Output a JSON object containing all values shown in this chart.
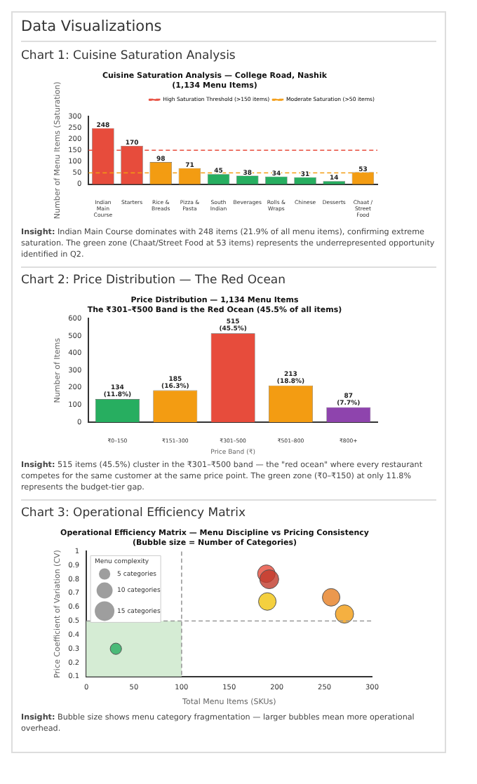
{
  "chart_data": [
    {
      "type": "bar",
      "title": "Cuisine Saturation Analysis — College Road, Nashik",
      "subtitle": "(1,134 Menu Items)",
      "ylabel": "Number of Menu Items (Saturation)",
      "categories": [
        "Indian Main Course",
        "Starters",
        "Rice & Breads",
        "Pizza & Pasta",
        "South Indian",
        "Beverages",
        "Rolls & Wraps",
        "Chinese",
        "Desserts",
        "Chaat / Street Food"
      ],
      "values": [
        248,
        170,
        98,
        71,
        45,
        38,
        34,
        31,
        14,
        53
      ],
      "colors": [
        "#e74c3c",
        "#e74c3c",
        "#f39c12",
        "#f39c12",
        "#27ae60",
        "#27ae60",
        "#27ae60",
        "#27ae60",
        "#27ae60",
        "#f39c12"
      ],
      "ylim": [
        0,
        300
      ],
      "yticks": [
        0,
        50,
        100,
        150,
        200,
        250,
        300
      ],
      "data_labels": true,
      "legend": "top right",
      "ref_lines": [
        {
          "axis": "y",
          "value": 150,
          "label": "High Saturation Threshold (>150 items)",
          "color": "#e74c3c",
          "line_style": "dashed"
        },
        {
          "axis": "y",
          "value": 50,
          "label": "Moderate Saturation (>50 items)",
          "color": "#f39c12",
          "line_style": "dashed"
        }
      ],
      "annotations": [
        "Data Visualizations",
        "Chart 1: Cuisine Saturation Analysis",
        "Insight: Indian Main Course dominates with 248 items (21.9% of all menu items), confirming extreme saturation. The green zone (Chaat/Street Food at 53 items) represents the underrepresented opportunity identified in Q2."
      ]
    },
    {
      "type": "bar",
      "title": "Price Distribution — 1,134 Menu Items",
      "subtitle": "The ₹301–₹500 Band is the Red Ocean (45.5% of all items)",
      "xlabel": "Price Band (₹)",
      "ylabel": "Number of Items",
      "categories": [
        "₹0–150",
        "₹151–300",
        "₹301–500",
        "₹501–800",
        "₹800+"
      ],
      "values": [
        134,
        185,
        515,
        213,
        87
      ],
      "colors": [
        "#27ae60",
        "#f39c12",
        "#e74c3c",
        "#f39c12",
        "#8e44ad"
      ],
      "value_labels": [
        "134 (11.8%)",
        "185 (16.3%)",
        "515 (45.5%)",
        "213 (18.8%)",
        "87 (7.7%)"
      ],
      "ylim": [
        0,
        600
      ],
      "yticks": [
        0,
        100,
        200,
        300,
        400,
        500,
        600
      ],
      "annotations": [
        "Chart 2: Price Distribution — The Red Ocean",
        "Insight: 515 items (45.5%) cluster in the ₹301–₹500 band — the \"red ocean\" where every restaurant competes for the same customer at the same price point. The green zone (₹0–₹150) at only 11.8% represents the budget-tier gap."
      ]
    },
    {
      "type": "bubble",
      "title": "Operational Efficiency Matrix — Menu Discipline vs Pricing Consistency",
      "subtitle": "(Bubble size = Number of Categories)",
      "xlabel": "Total Menu Items (SKUs)",
      "ylabel": "Price Coefficient of Variation (CV)",
      "x": [
        31,
        189,
        192,
        190,
        257,
        271
      ],
      "values": [
        0.3,
        0.84,
        0.8,
        0.64,
        0.67,
        0.55
      ],
      "sizes": [
        5,
        12,
        14,
        12,
        12,
        13
      ],
      "colors": [
        "#27ae60",
        "#e74c3c",
        "#c0392b",
        "#f1c40f",
        "#e67e22",
        "#f39c12"
      ],
      "legend_title": "Menu complexity",
      "size_legend": [
        {
          "value": 5,
          "label": "5 categories"
        },
        {
          "value": 10,
          "label": "10 categories"
        },
        {
          "value": 15,
          "label": "15 categories"
        }
      ],
      "xlim": [
        0,
        300
      ],
      "xticks": [
        0,
        50,
        100,
        150,
        200,
        250,
        300
      ],
      "ylim": [
        0.1,
        1.0
      ],
      "yticks": [
        0.1,
        0.2,
        0.3,
        0.4,
        0.5,
        0.6,
        0.7,
        0.8,
        0.9,
        1.0
      ],
      "ref_lines": [
        {
          "axis": "x",
          "value": 100,
          "color": "#999999",
          "line_style": "dashed"
        },
        {
          "axis": "y",
          "value": 0.5,
          "color": "#999999",
          "line_style": "dashed"
        }
      ],
      "bands": [
        {
          "axis": "x",
          "from": 0,
          "to": 100,
          "color": "#d5ecd4"
        }
      ],
      "annotations": [
        "Chart 3: Operational Efficiency Matrix",
        "Insight: Bubble size shows menu category fragmentation — larger bubbles mean more operational overhead."
      ]
    }
  ]
}
